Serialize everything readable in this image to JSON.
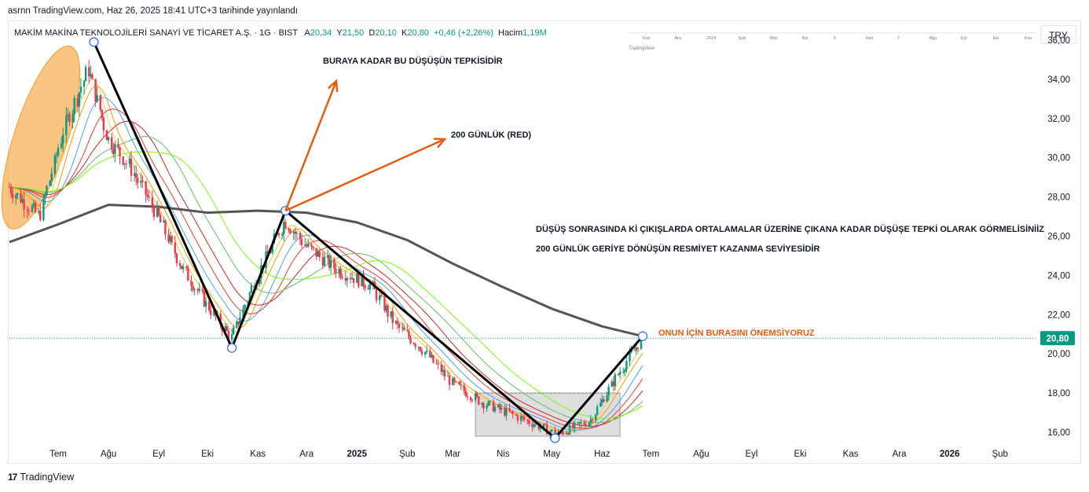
{
  "header": {
    "published": "asrnn TradingView.com, Haz 26, 2025 18:41 UTC+3 tarihinde yayınlandı"
  },
  "legend": {
    "symbol": "MAKİM MAKİNA TEKNOLOJİLERİ SANAYİ VE TİCARET A.Ş. · 1G · BIST",
    "o_label": "A",
    "o": "20,34",
    "h_label": "Y",
    "h": "21,50",
    "l_label": "D",
    "l": "20,10",
    "c_label": "K",
    "c": "20,80",
    "change": "+0,46 (+2,26%)",
    "volume_label": "Hacim",
    "volume": "1,19M"
  },
  "currency": "TRY",
  "footer": {
    "brand": "TradingView"
  },
  "colors": {
    "up": "#089981",
    "down": "#f23645",
    "annotation": "#e65c0f",
    "price_tag": "#089981"
  },
  "annotations": {
    "reaction_note": "BURAYA KADAR BU DÜŞÜŞÜN TEPKİSİDİR",
    "ma200_note": "200 GÜNLÜK (RED)",
    "explain_line1": "DÜŞÜŞ SONRASINDA Kİ ÇIKIŞLARDA ORTALAMALAR ÜZERİNE ÇIKANA KADAR DÜŞÜŞE TEPKİ OLARAK GÖRMELİSİNİİZ",
    "explain_line2": "200 GÜNLÜK GERİYE DÖNÜŞÜN RESMİYET KAZANMA SEVİYESİDİR",
    "important_note": "ONUN İÇİN BURASINI ÖNEMSİYORUZ"
  },
  "mini_overview": {
    "labels": [
      "Kas",
      "Ara",
      "2024",
      "Şub",
      "Mar",
      "Nis",
      "5",
      "Haz",
      "7",
      "Ağu",
      "Eyl",
      "Eki",
      "Kas"
    ],
    "brand": "TradingView"
  },
  "chart_data": {
    "type": "candlestick",
    "title": "MAKİM MAKİNA TEKNOLOJİLERİ SANAYİ VE TİCARET A.Ş. · 1G · BIST",
    "x_ticks": [
      "Tem",
      "Ağu",
      "Eyl",
      "Eki",
      "Kas",
      "Ara",
      "2025",
      "Şub",
      "Mar",
      "Nis",
      "May",
      "Haz",
      "Tem",
      "Ağu",
      "Eyl",
      "Eki",
      "Kas",
      "Ara",
      "2026",
      "Şub"
    ],
    "y_ticks": [
      "16,00",
      "18,00",
      "20,00",
      "22,00",
      "24,00",
      "26,00",
      "28,00",
      "30,00",
      "32,00",
      "34,00",
      "36,00"
    ],
    "ylim": [
      15.2,
      36.6
    ],
    "last_price": "20,80",
    "price_path": [
      [
        "2024-06-01",
        28.5
      ],
      [
        "2024-06-20",
        27.0
      ],
      [
        "2024-07-05",
        31.5
      ],
      [
        "2024-07-20",
        34.5
      ],
      [
        "2024-08-01",
        31.0
      ],
      [
        "2024-08-15",
        29.5
      ],
      [
        "2024-09-01",
        27.0
      ],
      [
        "2024-09-15",
        24.5
      ],
      [
        "2024-10-01",
        22.5
      ],
      [
        "2024-10-16",
        20.8
      ],
      [
        "2024-11-01",
        24.0
      ],
      [
        "2024-11-18",
        26.8
      ],
      [
        "2024-12-01",
        25.5
      ],
      [
        "2024-12-20",
        24.3
      ],
      [
        "2025-01-10",
        23.5
      ],
      [
        "2025-01-25",
        21.5
      ],
      [
        "2025-02-10",
        20.3
      ],
      [
        "2025-03-01",
        18.5
      ],
      [
        "2025-03-20",
        17.5
      ],
      [
        "2025-04-10",
        16.8
      ],
      [
        "2025-05-05",
        15.9
      ],
      [
        "2025-05-25",
        16.6
      ],
      [
        "2025-06-10",
        18.8
      ],
      [
        "2025-06-26",
        20.8
      ]
    ],
    "pattern_lines": [
      {
        "from": [
          "2024-07-23",
          35.9
        ],
        "to": [
          "2024-10-16",
          20.3
        ]
      },
      {
        "from": [
          "2024-10-16",
          20.3
        ],
        "to": [
          "2024-11-18",
          27.3
        ]
      },
      {
        "from": [
          "2024-11-18",
          27.3
        ],
        "to": [
          "2025-05-03",
          15.7
        ]
      },
      {
        "from": [
          "2025-05-03",
          15.7
        ],
        "to": [
          "2025-06-26",
          20.9
        ]
      }
    ],
    "ma200": [
      [
        "2024-06-01",
        25.7
      ],
      [
        "2024-07-01",
        26.6
      ],
      [
        "2024-08-01",
        27.6
      ],
      [
        "2024-09-01",
        27.5
      ],
      [
        "2024-10-01",
        27.2
      ],
      [
        "2024-11-01",
        27.3
      ],
      [
        "2024-12-01",
        27.2
      ],
      [
        "2025-01-01",
        26.7
      ],
      [
        "2025-02-01",
        25.8
      ],
      [
        "2025-03-01",
        24.6
      ],
      [
        "2025-04-01",
        23.4
      ],
      [
        "2025-05-01",
        22.3
      ],
      [
        "2025-06-01",
        21.4
      ],
      [
        "2025-06-26",
        20.9
      ]
    ],
    "consolidation_box": {
      "x_start": "2025-03-15",
      "x_end": "2025-06-12",
      "y_low": 15.8,
      "y_high": 18.0
    }
  }
}
